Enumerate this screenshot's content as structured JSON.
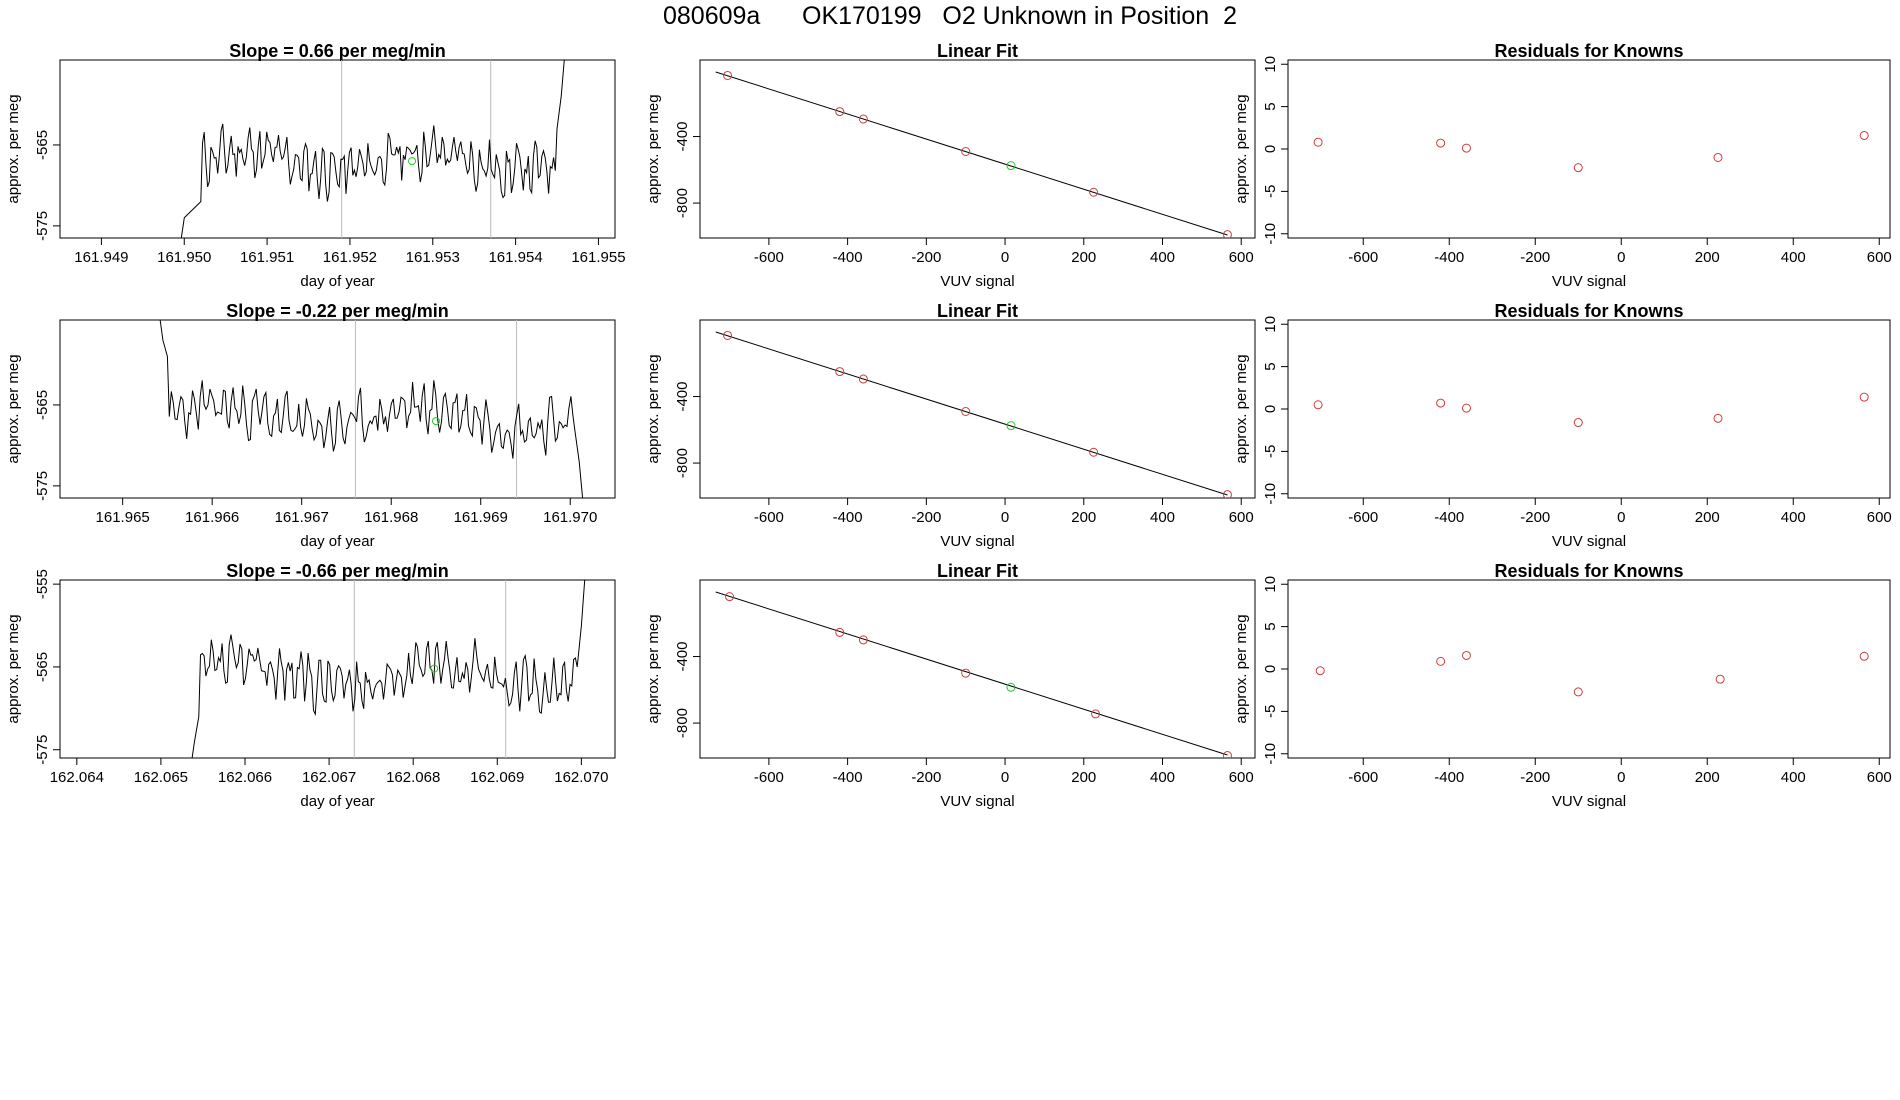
{
  "figure": {
    "title": "080609a      OK170199   O2 Unknown in Position  2"
  },
  "colors": {
    "trace": "#000000",
    "knowns": "#d23c3c",
    "unknown": "#22cc22",
    "vline": "#bbbbbb"
  },
  "chart_data": [
    {
      "type": "line",
      "panel": "time-series-1",
      "title": "Slope =  0.66  per meg/min",
      "xlabel": "day of year",
      "ylabel": "approx. per meg",
      "xlim": [
        161.9485,
        161.9552
      ],
      "ylim": [
        -576.5,
        -554.5
      ],
      "xticks": [
        "161.949",
        "161.950",
        "161.951",
        "161.952",
        "161.953",
        "161.954",
        "161.955"
      ],
      "yticks": [
        "-575",
        "-565"
      ],
      "vlines": [
        161.9519,
        161.9537
      ],
      "series": [
        {
          "start": 161.94995,
          "end": 161.9546,
          "base": -567.0,
          "amp": 2.5,
          "seed": 11,
          "pre": [
            [
              161.94995,
              -577.5
            ],
            [
              161.95,
              -574
            ],
            [
              161.9502,
              -572
            ]
          ],
          "post": [
            [
              161.9545,
              -563
            ],
            [
              161.95455,
              -559
            ],
            [
              161.9546,
              -553
            ]
          ]
        }
      ],
      "unknown_point": {
        "x": 161.95275,
        "y": -567.0
      }
    },
    {
      "type": "scatter",
      "panel": "linear-fit-1",
      "title": "Linear Fit",
      "xlabel": "VUV signal",
      "ylabel": "approx. per meg",
      "xlim": [
        -775,
        635
      ],
      "ylim": [
        -1010,
        60
      ],
      "xticks": [
        "-600",
        "-400",
        "-200",
        "0",
        "200",
        "400",
        "600"
      ],
      "yticks": [
        "-800",
        "-400"
      ],
      "fit_line": {
        "x": [
          -735,
          565
        ],
        "y": [
          -12,
          -992
        ]
      },
      "knowns": {
        "x": [
          -705,
          -420,
          -360,
          -100,
          225,
          565
        ],
        "y": [
          -33,
          -250,
          -295,
          -490,
          -735,
          -990
        ]
      },
      "unknown": {
        "x": 15,
        "y": -575
      }
    },
    {
      "type": "scatter",
      "panel": "residuals-1",
      "title": "Residuals for Knowns",
      "xlabel": "VUV signal",
      "ylabel": "approx. per meg",
      "xlim": [
        -775,
        625
      ],
      "ylim": [
        -10.5,
        10.5
      ],
      "xticks": [
        "-600",
        "-400",
        "-200",
        "0",
        "200",
        "400",
        "600"
      ],
      "yticks": [
        "10",
        "5",
        "0",
        "-5",
        "-10"
      ],
      "knowns": {
        "x": [
          -705,
          -420,
          -360,
          -100,
          225,
          565
        ],
        "y": [
          0.8,
          0.7,
          0.1,
          -2.2,
          -1.0,
          1.6
        ]
      }
    },
    {
      "type": "line",
      "panel": "time-series-2",
      "title": "Slope =  -0.22  per meg/min",
      "xlabel": "day of year",
      "ylabel": "approx. per meg",
      "xlim": [
        161.9643,
        161.9705
      ],
      "ylim": [
        -576.5,
        -554.5
      ],
      "xticks": [
        "161.965",
        "161.966",
        "161.967",
        "161.968",
        "161.969",
        "161.970"
      ],
      "yticks": [
        "-575",
        "-565"
      ],
      "vlines": [
        161.9676,
        161.9694
      ],
      "series": [
        {
          "start": 161.96555,
          "end": 161.97,
          "base": -566.5,
          "amp": 2.5,
          "seed": 23,
          "pre": [
            [
              161.9654,
              -553
            ],
            [
              161.96545,
              -557
            ],
            [
              161.9655,
              -559
            ]
          ],
          "post": [
            [
              161.97005,
              -568
            ],
            [
              161.9701,
              -572
            ],
            [
              161.97015,
              -578
            ]
          ]
        }
      ],
      "unknown_point": {
        "x": 161.9685,
        "y": -567.0
      }
    },
    {
      "type": "scatter",
      "panel": "linear-fit-2",
      "title": "Linear Fit",
      "xlabel": "VUV signal",
      "ylabel": "approx. per meg",
      "xlim": [
        -775,
        635
      ],
      "ylim": [
        -1010,
        60
      ],
      "xticks": [
        "-600",
        "-400",
        "-200",
        "0",
        "200",
        "400",
        "600"
      ],
      "yticks": [
        "-800",
        "-400"
      ],
      "fit_line": {
        "x": [
          -735,
          565
        ],
        "y": [
          -12,
          -992
        ]
      },
      "knowns": {
        "x": [
          -705,
          -420,
          -360,
          -100,
          225,
          565
        ],
        "y": [
          -33,
          -250,
          -295,
          -490,
          -735,
          -990
        ]
      },
      "unknown": {
        "x": 15,
        "y": -575
      }
    },
    {
      "type": "scatter",
      "panel": "residuals-2",
      "title": "Residuals for Knowns",
      "xlabel": "VUV signal",
      "ylabel": "approx. per meg",
      "xlim": [
        -775,
        625
      ],
      "ylim": [
        -10.5,
        10.5
      ],
      "xticks": [
        "-600",
        "-400",
        "-200",
        "0",
        "200",
        "400",
        "600"
      ],
      "yticks": [
        "10",
        "5",
        "0",
        "-5",
        "-10"
      ],
      "knowns": {
        "x": [
          -705,
          -420,
          -360,
          -100,
          225,
          565
        ],
        "y": [
          0.5,
          0.7,
          0.1,
          -1.6,
          -1.1,
          1.4
        ]
      }
    },
    {
      "type": "line",
      "panel": "time-series-3",
      "title": "Slope =  -0.66  per meg/min",
      "xlabel": "day of year",
      "ylabel": "approx. per meg",
      "xlim": [
        162.0638,
        162.0704
      ],
      "ylim": [
        -576,
        -554.5
      ],
      "xticks": [
        "162.064",
        "162.065",
        "162.066",
        "162.067",
        "162.068",
        "162.069",
        "162.070"
      ],
      "yticks": [
        "-575",
        "-565",
        "-555"
      ],
      "vlines": [
        162.0673,
        162.0691
      ],
      "series": [
        {
          "start": 162.0654,
          "end": 162.06995,
          "base": -566.0,
          "amp": 2.6,
          "seed": 37,
          "pre": [
            [
              162.06535,
              -577.5
            ],
            [
              162.0654,
              -574
            ],
            [
              162.06545,
              -571
            ]
          ],
          "post": [
            [
              162.06995,
              -565
            ],
            [
              162.07,
              -560
            ],
            [
              162.07005,
              -553
            ]
          ]
        }
      ],
      "unknown_point": {
        "x": 162.06825,
        "y": -565.2
      }
    },
    {
      "type": "scatter",
      "panel": "linear-fit-3",
      "title": "Linear Fit",
      "xlabel": "VUV signal",
      "ylabel": "approx. per meg",
      "xlim": [
        -775,
        635
      ],
      "ylim": [
        -1010,
        60
      ],
      "xticks": [
        "-600",
        "-400",
        "-200",
        "0",
        "200",
        "400",
        "600"
      ],
      "yticks": [
        "-800",
        "-400"
      ],
      "fit_line": {
        "x": [
          -735,
          565
        ],
        "y": [
          -12,
          -992
        ]
      },
      "knowns": {
        "x": [
          -700,
          -420,
          -360,
          -100,
          230,
          565
        ],
        "y": [
          -40,
          -255,
          -300,
          -500,
          -745,
          -995
        ]
      },
      "unknown": {
        "x": 15,
        "y": -585
      }
    },
    {
      "type": "scatter",
      "panel": "residuals-3",
      "title": "Residuals for Knowns",
      "xlabel": "VUV signal",
      "ylabel": "approx. per meg",
      "xlim": [
        -775,
        625
      ],
      "ylim": [
        -10.5,
        10.5
      ],
      "xticks": [
        "-600",
        "-400",
        "-200",
        "0",
        "200",
        "400",
        "600"
      ],
      "yticks": [
        "10",
        "5",
        "0",
        "-5",
        "-10"
      ],
      "knowns": {
        "x": [
          -700,
          -420,
          -360,
          -100,
          230,
          565
        ],
        "y": [
          -0.2,
          0.9,
          1.6,
          -2.7,
          -1.2,
          1.5
        ]
      }
    }
  ]
}
